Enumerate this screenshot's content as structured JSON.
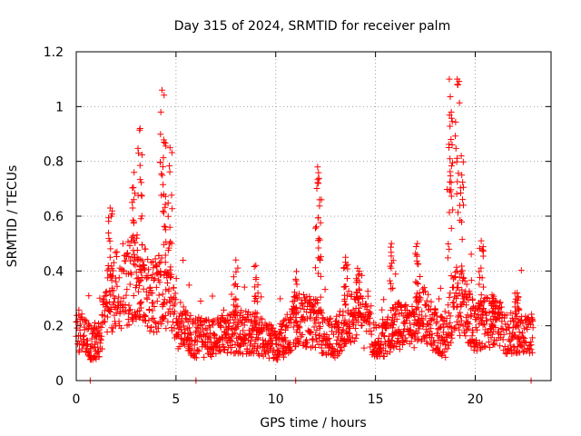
{
  "chart_data": {
    "type": "scatter",
    "title": "Day 315 of 2024, SRMTID for receiver palm",
    "xlabel": "GPS time / hours",
    "ylabel": "SRMTID / TECUs",
    "xlim": [
      0,
      23.8
    ],
    "ylim": [
      0,
      1.2
    ],
    "xticks": [
      0,
      5,
      10,
      15,
      20
    ],
    "xtick_labels": [
      "0",
      "5",
      "10",
      "15",
      "20"
    ],
    "yticks": [
      0,
      0.2,
      0.4,
      0.6,
      0.8,
      1.0,
      1.2
    ],
    "ytick_labels": [
      "0",
      "0.2",
      "0.4",
      "0.6",
      "0.8",
      "1",
      "1.2"
    ],
    "grid": true,
    "marker": "+",
    "color": "#ff0000",
    "series": [
      {
        "name": "palm",
        "profile": [
          [
            0.0,
            0.19
          ],
          [
            0.4,
            0.16
          ],
          [
            0.8,
            0.13
          ],
          [
            1.2,
            0.15
          ],
          [
            1.6,
            0.3
          ],
          [
            2.0,
            0.33
          ],
          [
            2.5,
            0.36
          ],
          [
            3.0,
            0.38
          ],
          [
            3.5,
            0.34
          ],
          [
            4.0,
            0.31
          ],
          [
            4.5,
            0.33
          ],
          [
            5.0,
            0.22
          ],
          [
            5.5,
            0.18
          ],
          [
            6.0,
            0.15
          ],
          [
            7.0,
            0.16
          ],
          [
            8.0,
            0.18
          ],
          [
            9.0,
            0.17
          ],
          [
            10.0,
            0.13
          ],
          [
            10.5,
            0.16
          ],
          [
            11.0,
            0.22
          ],
          [
            12.0,
            0.21
          ],
          [
            12.5,
            0.16
          ],
          [
            13.0,
            0.15
          ],
          [
            13.5,
            0.21
          ],
          [
            14.0,
            0.26
          ],
          [
            14.5,
            0.2
          ],
          [
            15.0,
            0.14
          ],
          [
            15.5,
            0.16
          ],
          [
            16.0,
            0.2
          ],
          [
            16.5,
            0.19
          ],
          [
            17.0,
            0.21
          ],
          [
            17.5,
            0.24
          ],
          [
            18.0,
            0.18
          ],
          [
            18.5,
            0.15
          ],
          [
            19.0,
            0.3
          ],
          [
            19.5,
            0.26
          ],
          [
            20.0,
            0.19
          ],
          [
            20.5,
            0.21
          ],
          [
            21.0,
            0.22
          ],
          [
            21.5,
            0.17
          ],
          [
            22.0,
            0.18
          ],
          [
            22.9,
            0.17
          ]
        ],
        "bursts": [
          {
            "x": 1.7,
            "y": 0.63
          },
          {
            "x": 2.9,
            "y": 0.76
          },
          {
            "x": 3.2,
            "y": 0.92
          },
          {
            "x": 4.3,
            "y": 1.06
          },
          {
            "x": 4.4,
            "y": 0.87
          },
          {
            "x": 4.7,
            "y": 0.85
          },
          {
            "x": 8.0,
            "y": 0.44
          },
          {
            "x": 9.0,
            "y": 0.42
          },
          {
            "x": 11.0,
            "y": 0.37
          },
          {
            "x": 12.1,
            "y": 0.78
          },
          {
            "x": 12.2,
            "y": 0.66
          },
          {
            "x": 13.5,
            "y": 0.45
          },
          {
            "x": 14.1,
            "y": 0.41
          },
          {
            "x": 15.8,
            "y": 0.5
          },
          {
            "x": 17.1,
            "y": 0.5
          },
          {
            "x": 18.7,
            "y": 1.1
          },
          {
            "x": 18.8,
            "y": 0.98
          },
          {
            "x": 19.1,
            "y": 1.1
          },
          {
            "x": 19.3,
            "y": 0.82
          },
          {
            "x": 20.3,
            "y": 0.51
          },
          {
            "x": 20.9,
            "y": 0.3
          },
          {
            "x": 22.1,
            "y": 0.32
          }
        ],
        "zeros": [
          0.7,
          6.0,
          11.0,
          22.8
        ]
      }
    ]
  }
}
